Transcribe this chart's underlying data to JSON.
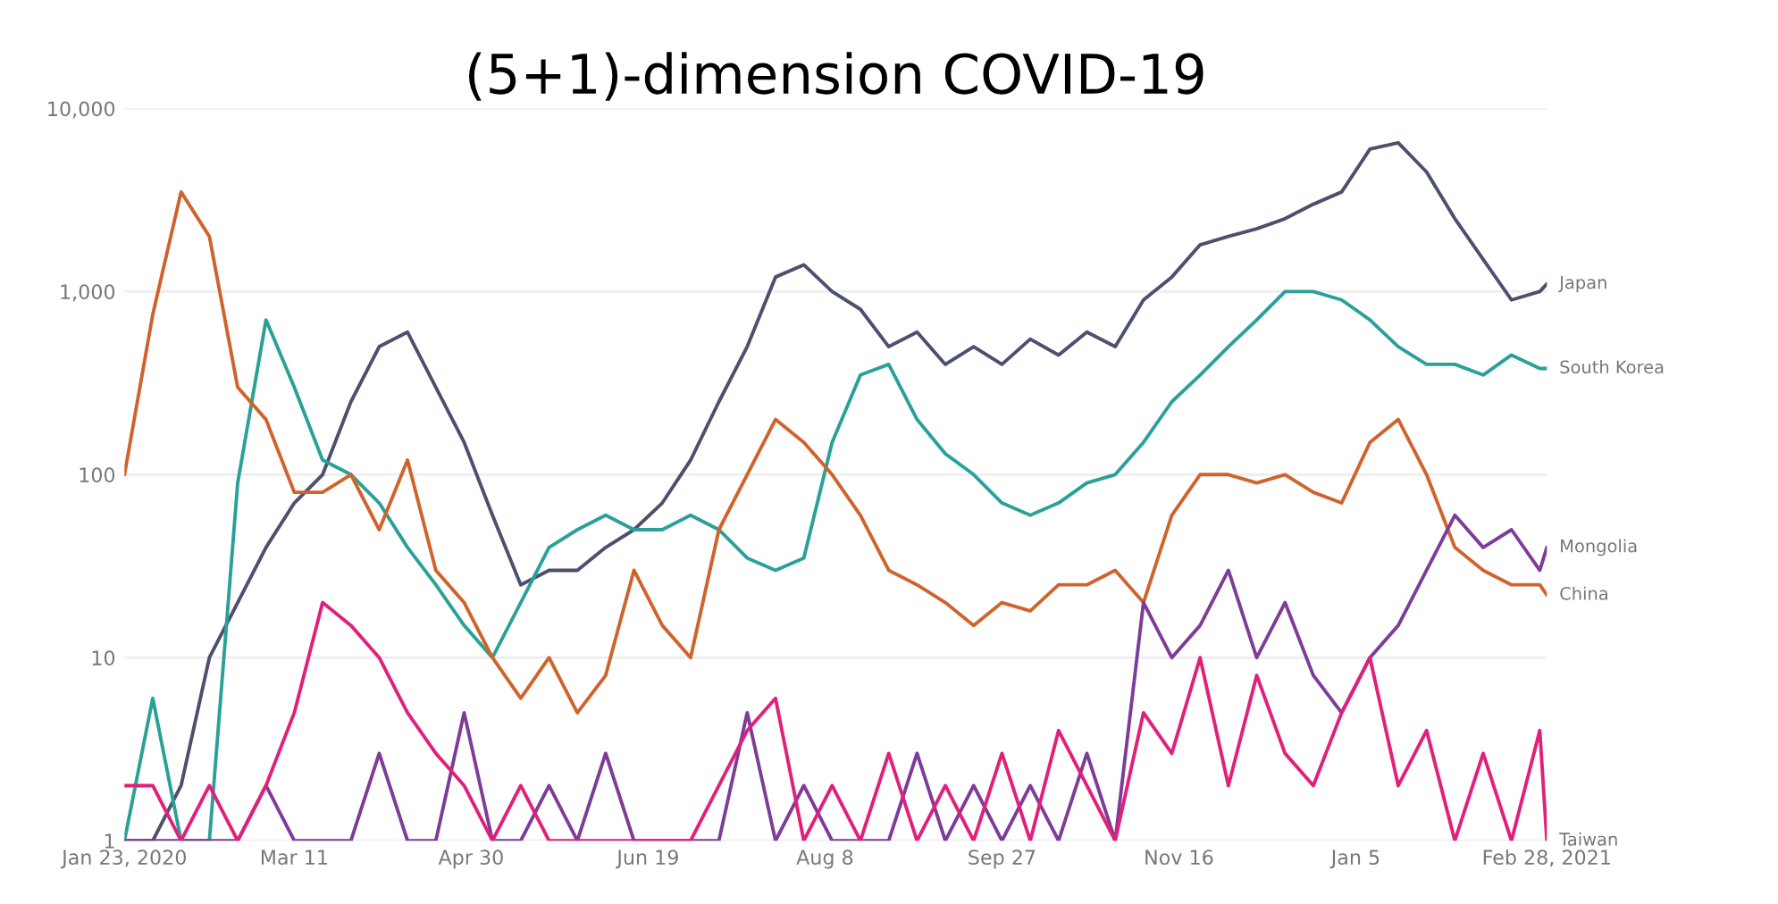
{
  "chart_data": {
    "type": "line",
    "title": "(5+1)-dimension COVID-19",
    "x": [
      "2020-01-23",
      "2020-01-31",
      "2020-02-08",
      "2020-02-16",
      "2020-02-24",
      "2020-03-03",
      "2020-03-11",
      "2020-03-19",
      "2020-03-27",
      "2020-04-04",
      "2020-04-12",
      "2020-04-20",
      "2020-04-28",
      "2020-05-06",
      "2020-05-14",
      "2020-05-22",
      "2020-05-30",
      "2020-06-07",
      "2020-06-15",
      "2020-06-23",
      "2020-07-01",
      "2020-07-09",
      "2020-07-17",
      "2020-07-25",
      "2020-08-02",
      "2020-08-10",
      "2020-08-18",
      "2020-08-26",
      "2020-09-03",
      "2020-09-11",
      "2020-09-19",
      "2020-09-27",
      "2020-10-05",
      "2020-10-13",
      "2020-10-21",
      "2020-10-29",
      "2020-11-06",
      "2020-11-14",
      "2020-11-22",
      "2020-11-30",
      "2020-12-08",
      "2020-12-16",
      "2020-12-24",
      "2021-01-01",
      "2021-01-09",
      "2021-01-17",
      "2021-01-25",
      "2021-02-02",
      "2021-02-10",
      "2021-02-18",
      "2021-02-26",
      "2021-02-28"
    ],
    "series": [
      {
        "name": "Japan",
        "color": "#4d4f6e",
        "values": [
          1,
          1,
          2,
          10,
          20,
          40,
          70,
          100,
          250,
          500,
          600,
          300,
          150,
          60,
          25,
          30,
          30,
          40,
          50,
          70,
          120,
          250,
          500,
          1200,
          1400,
          1000,
          800,
          500,
          600,
          400,
          500,
          400,
          550,
          450,
          600,
          500,
          900,
          1200,
          1800,
          2000,
          2200,
          2500,
          3000,
          3500,
          6000,
          6500,
          4500,
          2500,
          1500,
          900,
          1000,
          1100
        ]
      },
      {
        "name": "South Korea",
        "color": "#2aa198",
        "values": [
          1,
          6,
          1,
          1,
          90,
          700,
          300,
          120,
          100,
          70,
          40,
          25,
          15,
          10,
          20,
          40,
          50,
          60,
          50,
          50,
          60,
          50,
          35,
          30,
          35,
          150,
          350,
          400,
          200,
          130,
          100,
          70,
          60,
          70,
          90,
          100,
          150,
          250,
          350,
          500,
          700,
          1000,
          1000,
          900,
          700,
          500,
          400,
          400,
          350,
          450,
          380,
          380
        ]
      },
      {
        "name": "China",
        "color": "#d0632c",
        "values": [
          100,
          750,
          3500,
          2000,
          300,
          200,
          80,
          80,
          100,
          50,
          120,
          30,
          20,
          10,
          6,
          10,
          5,
          8,
          30,
          15,
          10,
          50,
          100,
          200,
          150,
          100,
          60,
          30,
          25,
          20,
          15,
          20,
          18,
          25,
          25,
          30,
          20,
          60,
          100,
          100,
          90,
          100,
          80,
          70,
          150,
          200,
          100,
          40,
          30,
          25,
          25,
          22
        ]
      },
      {
        "name": "Mongolia",
        "color": "#7d3c98",
        "values": [
          1,
          1,
          1,
          1,
          1,
          2,
          1,
          1,
          1,
          3,
          1,
          1,
          5,
          1,
          1,
          2,
          1,
          3,
          1,
          1,
          1,
          1,
          5,
          1,
          2,
          1,
          1,
          1,
          3,
          1,
          2,
          1,
          2,
          1,
          3,
          1,
          20,
          10,
          15,
          30,
          10,
          20,
          8,
          5,
          10,
          15,
          30,
          60,
          40,
          50,
          30,
          40
        ]
      },
      {
        "name": "Taiwan",
        "color": "#e0207a",
        "values": [
          2,
          2,
          1,
          2,
          1,
          2,
          5,
          20,
          15,
          10,
          5,
          3,
          2,
          1,
          2,
          1,
          1,
          1,
          1,
          1,
          1,
          2,
          4,
          6,
          1,
          2,
          1,
          3,
          1,
          2,
          1,
          3,
          1,
          4,
          2,
          1,
          5,
          3,
          10,
          2,
          8,
          3,
          2,
          5,
          10,
          2,
          4,
          1,
          3,
          1,
          4,
          1
        ]
      }
    ],
    "log": "y",
    "ylim": [
      1,
      10000
    ],
    "yticks": [
      1,
      10,
      100,
      {
        "value": 1000,
        "label": "1,000"
      },
      {
        "value": 10000,
        "label": "10,000"
      }
    ],
    "xlim": [
      "2020-01-23",
      "2021-02-28"
    ],
    "xticks": [
      {
        "value": "2020-01-23",
        "label": "Jan 23, 2020"
      },
      {
        "value": "2020-03-11",
        "label": "Mar 11"
      },
      {
        "value": "2020-04-30",
        "label": "Apr 30"
      },
      {
        "value": "2020-06-19",
        "label": "Jun 19"
      },
      {
        "value": "2020-08-08",
        "label": "Aug 8"
      },
      {
        "value": "2020-09-27",
        "label": "Sep 27"
      },
      {
        "value": "2020-11-16",
        "label": "Nov 16"
      },
      {
        "value": "2021-01-05",
        "label": "Jan 5"
      },
      {
        "value": "2021-02-28",
        "label": "Feb 28, 2021"
      }
    ],
    "grid": "y"
  }
}
